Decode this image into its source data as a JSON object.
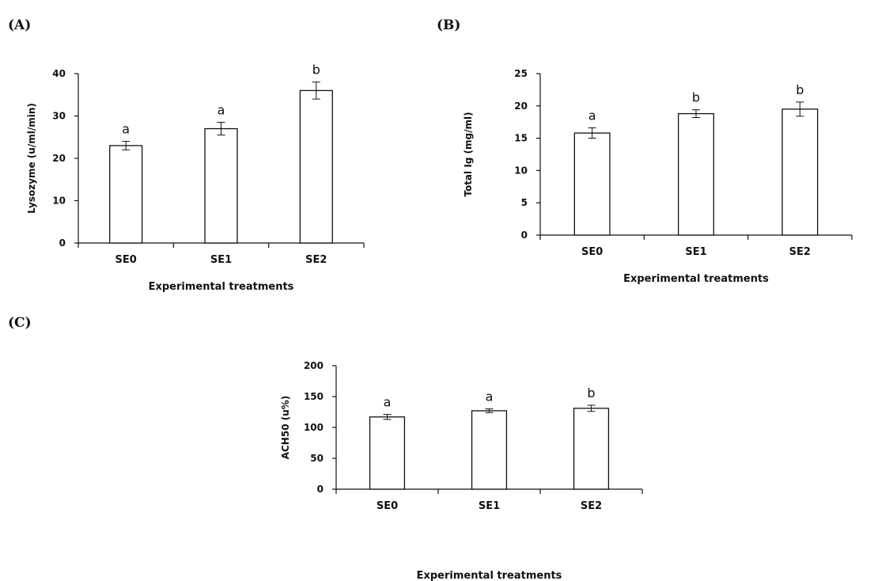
{
  "chart_data": [
    {
      "panel": "(A)",
      "type": "bar",
      "categories": [
        "SE0",
        "SE1",
        "SE2"
      ],
      "values": [
        23,
        27,
        36
      ],
      "errors": [
        1,
        1.5,
        2
      ],
      "letters": [
        "a",
        "a",
        "b"
      ],
      "xlabel": "Experimental treatments",
      "ylabel": "Lysozyme (u/ml/min)",
      "ylim": [
        0,
        40
      ],
      "yticks": [
        0,
        10,
        20,
        30,
        40
      ]
    },
    {
      "panel": "(B)",
      "type": "bar",
      "categories": [
        "SE0",
        "SE1",
        "SE2"
      ],
      "values": [
        15.8,
        18.8,
        19.5
      ],
      "errors": [
        0.8,
        0.6,
        1.1
      ],
      "letters": [
        "a",
        "b",
        "b"
      ],
      "xlabel": "Experimental treatments",
      "ylabel": "Total Ig (mg/ml)",
      "ylim": [
        0,
        25
      ],
      "yticks": [
        0,
        5,
        10,
        15,
        20,
        25
      ]
    },
    {
      "panel": "(C)",
      "type": "bar",
      "categories": [
        "SE0",
        "SE1",
        "SE2"
      ],
      "values": [
        117,
        127,
        131
      ],
      "errors": [
        4,
        3,
        5
      ],
      "letters": [
        "a",
        "a",
        "b"
      ],
      "xlabel": "Experimental treatments",
      "ylabel": "ACH50 (u%)",
      "ylim": [
        0,
        200
      ],
      "yticks": [
        0,
        50,
        100,
        150,
        200
      ]
    }
  ]
}
